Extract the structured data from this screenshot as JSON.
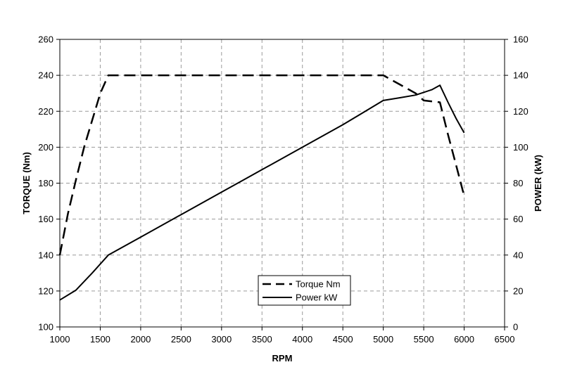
{
  "chart_data": {
    "type": "line",
    "title": "",
    "xlabel": "RPM",
    "ylabel": "TORQUE (Nm)",
    "y2label": "POWER (kW)",
    "xlim": [
      1000,
      6500
    ],
    "ylim": [
      100,
      260
    ],
    "y2lim": [
      0,
      160
    ],
    "x_ticks": [
      1000,
      1500,
      2000,
      2500,
      3000,
      3500,
      4000,
      4500,
      5000,
      5500,
      6000,
      6500
    ],
    "y_ticks": [
      100,
      120,
      140,
      160,
      180,
      200,
      220,
      240,
      260
    ],
    "y2_ticks": [
      0,
      20,
      40,
      60,
      80,
      100,
      120,
      140,
      160
    ],
    "grid": true,
    "legend_position": "bottom-center",
    "series": [
      {
        "name": "Torque Nm",
        "axis": "left",
        "style": "dashed",
        "color": "#000000",
        "x": [
          1000,
          1100,
          1200,
          1300,
          1400,
          1500,
          1600,
          2000,
          3000,
          4000,
          5000,
          5200,
          5400,
          5500,
          5700,
          5800,
          5900,
          6000
        ],
        "y": [
          140,
          163,
          182,
          200,
          215,
          230,
          240,
          240,
          240,
          240,
          240,
          235,
          230,
          226,
          225,
          207,
          190,
          173
        ]
      },
      {
        "name": "Power kW",
        "axis": "right",
        "style": "solid",
        "color": "#000000",
        "x": [
          1000,
          1200,
          1400,
          1600,
          2000,
          2500,
          3000,
          3500,
          4000,
          4500,
          5000,
          5200,
          5400,
          5600,
          5700,
          5800,
          5900,
          6000
        ],
        "y": [
          15,
          20.5,
          30,
          40,
          50,
          62.5,
          75,
          87.5,
          100,
          112.5,
          126,
          127.5,
          129,
          132,
          134.5,
          125,
          116,
          108
        ]
      }
    ]
  }
}
